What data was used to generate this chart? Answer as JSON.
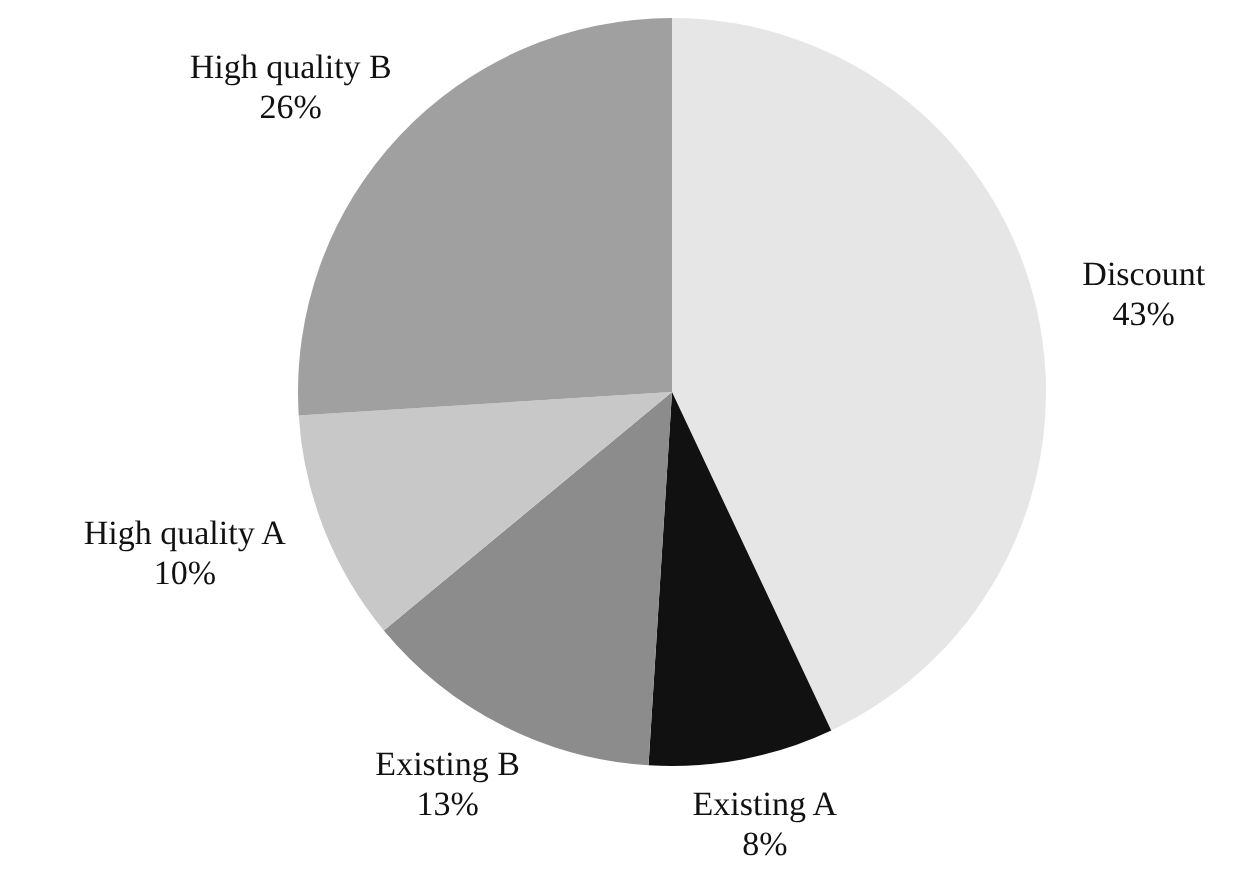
{
  "chart_data": {
    "type": "pie",
    "categories": [
      "Discount",
      "Existing A",
      "Existing B",
      "High quality A",
      "High quality B"
    ],
    "values": [
      43,
      8,
      13,
      10,
      26
    ],
    "value_labels": [
      "43%",
      "8%",
      "13%",
      "10%",
      "26%"
    ],
    "colors": [
      "#e6e6e6",
      "#111111",
      "#8c8c8c",
      "#c8c8c8",
      "#a0a0a0"
    ],
    "legend": false
  }
}
